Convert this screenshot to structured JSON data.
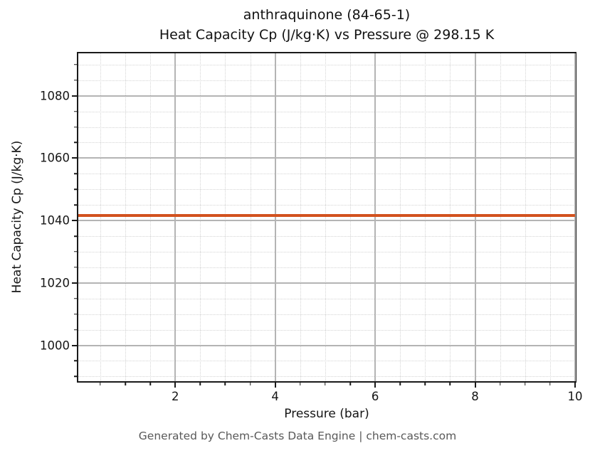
{
  "chart_data": {
    "type": "line",
    "title_line1": "anthraquinone (84-65-1)",
    "title_line2": "Heat Capacity Cp (J/kg·K) vs Pressure @ 298.15 K",
    "xlabel": "Pressure (bar)",
    "ylabel": "Heat Capacity Cp (J/kg·K)",
    "xlim": [
      0.06,
      10
    ],
    "ylim": [
      988.5,
      1093.6
    ],
    "x_major_ticks": [
      2,
      4,
      6,
      8,
      10
    ],
    "x_minor_step": 0.5,
    "y_major_ticks": [
      1000,
      1020,
      1040,
      1060,
      1080
    ],
    "y_minor_step": 5,
    "grid": {
      "visible": true,
      "major_style": "solid",
      "minor_style": "dotted"
    },
    "legend": "none",
    "series": [
      {
        "name": "Heat Capacity Cp",
        "color": "#d2521e",
        "x": [
          0.1,
          10
        ],
        "y": [
          1041.7,
          1041.7
        ]
      }
    ]
  },
  "footer": {
    "text": "Generated by Chem-Casts Data Engine | chem-casts.com"
  },
  "colors": {
    "line": "#d2521e",
    "grid_major": "#b4b4b4",
    "grid_minor": "#d4d4d4",
    "spine": "#1a1a1a",
    "tick_label": "#151515",
    "footer_text": "#595959",
    "background": "#ffffff"
  }
}
